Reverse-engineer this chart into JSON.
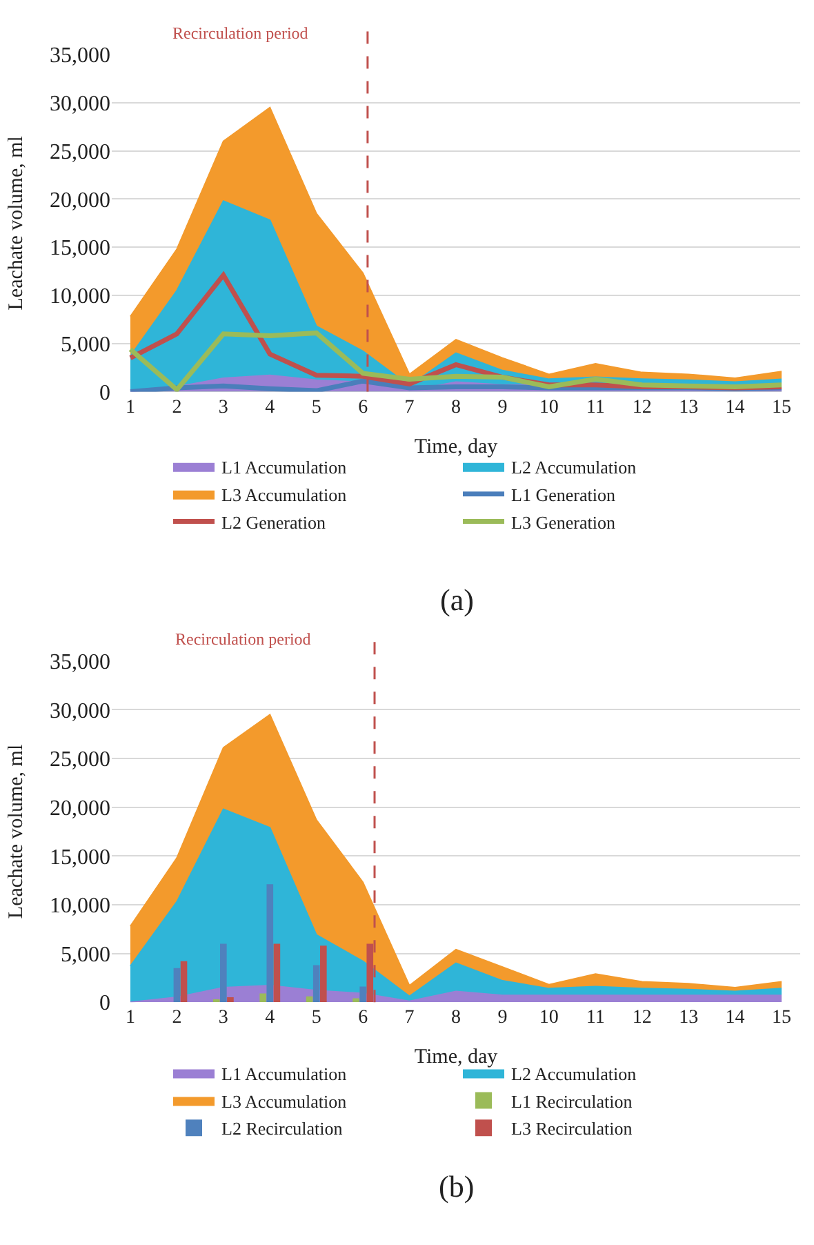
{
  "chart_data": [
    {
      "type": "area",
      "xlabel": "Time, day",
      "ylabel": "Leachate volume, ml",
      "annotations": [
        "(a)"
      ],
      "x": [
        1,
        2,
        3,
        4,
        5,
        6,
        7,
        8,
        9,
        10,
        11,
        12,
        13,
        14,
        15
      ],
      "xlim": [
        0.6,
        15.4
      ],
      "xticks": [
        1,
        2,
        3,
        4,
        5,
        6,
        7,
        8,
        9,
        10,
        11,
        12,
        13,
        14,
        15
      ],
      "ylim": [
        0,
        35000
      ],
      "yticks": [
        0,
        {
          "value": 5000,
          "label": "5,000"
        },
        {
          "value": 10000,
          "label": "10,000"
        },
        {
          "value": 15000,
          "label": "15,000"
        },
        {
          "value": 20000,
          "label": "20,000"
        },
        {
          "value": 25000,
          "label": "25,000"
        },
        {
          "value": 30000,
          "label": "30,000"
        },
        {
          "value": 35000,
          "label": "35,000"
        }
      ],
      "grid": "y",
      "legend": "bottom",
      "ref_lines": [
        {
          "axis": "x",
          "value": 6.1,
          "label": "Recirculation period",
          "color": "#c0504d",
          "line_style": "dashed"
        }
      ],
      "series": [
        {
          "name": "L1 Accumulation",
          "color": "#9b7fd4",
          "values": [
            0,
            500,
            1400,
            1700,
            1200,
            1000,
            100,
            1000,
            700,
            700,
            700,
            700,
            700,
            600,
            700
          ]
        },
        {
          "name": "L2 Accumulation",
          "color": "#2fb5d8",
          "values": [
            3700,
            10500,
            19800,
            17800,
            6800,
            4200,
            600,
            4000,
            2200,
            1300,
            1500,
            1300,
            1200,
            1000,
            1300
          ]
        },
        {
          "name": "L3 Accumulation",
          "color": "#f39a2c",
          "values": [
            7800,
            14800,
            26000,
            29500,
            18500,
            12300,
            1800,
            5400,
            3500,
            1800,
            2900,
            2000,
            1800,
            1400,
            2100
          ]
        },
        {
          "name": "L1 Generation",
          "type": "line",
          "color": "#4a7ebb",
          "values": [
            0,
            400,
            600,
            300,
            100,
            1100,
            400,
            500,
            500,
            400,
            400,
            400,
            400,
            300,
            400
          ]
        },
        {
          "name": "L2 Generation",
          "type": "line",
          "color": "#c0504d",
          "values": [
            3500,
            6000,
            12100,
            3900,
            1700,
            1600,
            800,
            2800,
            1500,
            700,
            700,
            500,
            500,
            400,
            500
          ]
        },
        {
          "name": "L3 Generation",
          "type": "line",
          "color": "#9bbb59",
          "values": [
            4400,
            200,
            6000,
            5800,
            6100,
            1900,
            1300,
            1600,
            1500,
            500,
            1300,
            700,
            600,
            500,
            700
          ]
        }
      ]
    },
    {
      "type": "area",
      "xlabel": "Time, day",
      "ylabel": "Leachate volume, ml",
      "annotations": [
        "(b)"
      ],
      "x": [
        1,
        2,
        3,
        4,
        5,
        6,
        7,
        8,
        9,
        10,
        11,
        12,
        13,
        14,
        15
      ],
      "xlim": [
        0.6,
        15.4
      ],
      "xticks": [
        1,
        2,
        3,
        4,
        5,
        6,
        7,
        8,
        9,
        10,
        11,
        12,
        13,
        14,
        15
      ],
      "ylim": [
        0,
        35000
      ],
      "yticks": [
        0,
        {
          "value": 5000,
          "label": "5,000"
        },
        {
          "value": 10000,
          "label": "10,000"
        },
        {
          "value": 15000,
          "label": "15,000"
        },
        {
          "value": 20000,
          "label": "20,000"
        },
        {
          "value": 25000,
          "label": "25,000"
        },
        {
          "value": 30000,
          "label": "30,000"
        },
        {
          "value": 35000,
          "label": "35,000"
        }
      ],
      "grid": "y",
      "legend": "bottom",
      "ref_lines": [
        {
          "axis": "x",
          "value": 6.25,
          "label": "Recirculation period",
          "color": "#c0504d",
          "line_style": "dashed"
        }
      ],
      "series": [
        {
          "name": "L1 Accumulation",
          "color": "#9b7fd4",
          "values": [
            0,
            500,
            1500,
            1700,
            1200,
            900,
            100,
            1100,
            700,
            700,
            700,
            700,
            700,
            700,
            700
          ]
        },
        {
          "name": "L2 Accumulation",
          "color": "#2fb5d8",
          "values": [
            3700,
            10300,
            19800,
            17900,
            6900,
            4200,
            600,
            4000,
            2200,
            1400,
            1600,
            1400,
            1300,
            1100,
            1400
          ]
        },
        {
          "name": "L3 Accumulation",
          "color": "#f39a2c",
          "values": [
            7800,
            14800,
            26100,
            29500,
            18700,
            12300,
            1700,
            5400,
            3600,
            1800,
            2900,
            2100,
            1900,
            1500,
            2100
          ]
        },
        {
          "name": "L1 Recirculation",
          "type": "bar",
          "color": "#9bbb59",
          "values": [
            null,
            null,
            300,
            900,
            600,
            400,
            null,
            null,
            null,
            null,
            null,
            null,
            null,
            null,
            null
          ]
        },
        {
          "name": "L2 Recirculation",
          "type": "bar",
          "color": "#4f81bd",
          "values": [
            null,
            3500,
            6000,
            12100,
            3800,
            1600,
            null,
            null,
            null,
            null,
            null,
            null,
            null,
            null,
            null
          ]
        },
        {
          "name": "L3 Recirculation",
          "type": "bar",
          "color": "#c0504d",
          "values": [
            null,
            4200,
            500,
            6000,
            5800,
            6000,
            null,
            null,
            null,
            null,
            null,
            null,
            null,
            null,
            null
          ]
        }
      ]
    }
  ]
}
